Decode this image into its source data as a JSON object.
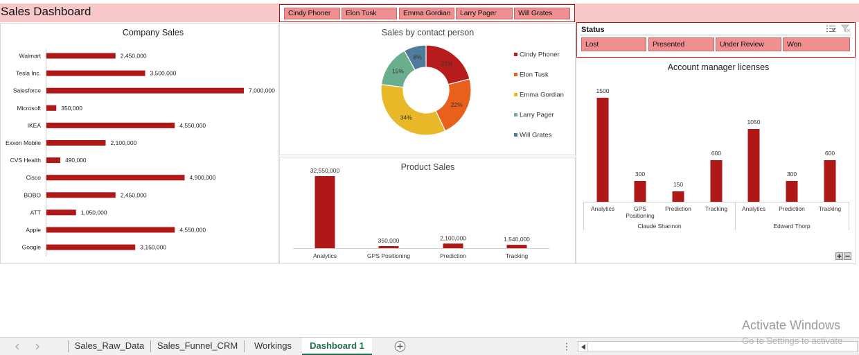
{
  "header": {
    "title": "Sales Dashboard"
  },
  "person_slicer": {
    "items": [
      "Cindy Phoner",
      "Elon Tusk",
      "Emma Gordian",
      "Larry Pager",
      "Will Grates"
    ]
  },
  "status_slicer": {
    "title": "Status",
    "items": [
      "Lost",
      "Presented",
      "Under Review",
      "Won"
    ]
  },
  "colors": {
    "bar": "#b01818",
    "header_bg": "#f8c8c8",
    "slicer_button": "#ef8f8f",
    "active_tab": "#1e7145"
  },
  "chart_data": [
    {
      "type": "bar",
      "orientation": "horizontal",
      "title": "Company Sales",
      "categories": [
        "Walmart",
        "Tesla Inc.",
        "Salesforce",
        "Microsoft",
        "IKEA",
        "Exxon Mobile",
        "CVS Health",
        "Cisco",
        "BOBO",
        "ATT",
        "Apple",
        "Google"
      ],
      "values": [
        2450000,
        3500000,
        7000000,
        350000,
        4550000,
        2100000,
        490000,
        4900000,
        2450000,
        1050000,
        4550000,
        3150000
      ],
      "labels": [
        "2,450,000",
        "3,500,000",
        "7,000,000",
        "350,000",
        "4,550,000",
        "2,100,000",
        "490,000",
        "4,900,000",
        "2,450,000",
        "1,050,000",
        "4,550,000",
        "3,150,000"
      ],
      "xlim": [
        0,
        7000000
      ],
      "grid": false,
      "legend": "none"
    },
    {
      "type": "pie",
      "donut": true,
      "title": "Sales by contact person",
      "labels": [
        "Cindy Phoner",
        "Elon Tusk",
        "Emma Gordian",
        "Larry Pager",
        "Will Grates"
      ],
      "values": [
        21,
        22,
        34,
        15,
        8
      ],
      "value_labels": [
        "21%",
        "22%",
        "34%",
        "15%",
        "8%"
      ],
      "colors": [
        "#b71c1c",
        "#e8601c",
        "#e8b828",
        "#6aae8e",
        "#4e7c9a"
      ],
      "legend": "right"
    },
    {
      "type": "bar",
      "title": "Product Sales",
      "categories": [
        "Analytics",
        "GPS Positioning",
        "Prediction",
        "Tracking"
      ],
      "values": [
        32550000,
        350000,
        2100000,
        1540000
      ],
      "labels": [
        "32,550,000",
        "350,000",
        "2,100,000",
        "1,540,000"
      ],
      "ylim": [
        0,
        32550000
      ],
      "grid": false,
      "legend": "none"
    },
    {
      "type": "bar",
      "title": "Account manager licenses",
      "groups": [
        {
          "name": "Claude Shannon",
          "categories": [
            "Analytics",
            "GPS Positioning",
            "Prediction",
            "Tracking"
          ],
          "values": [
            1500,
            300,
            150,
            600
          ]
        },
        {
          "name": "Edward Thorp",
          "categories": [
            "Analytics",
            "Prediction",
            "Tracking"
          ],
          "values": [
            1050,
            300,
            600
          ]
        }
      ],
      "ylim": [
        0,
        1600
      ],
      "grid": false,
      "legend": "none"
    }
  ],
  "sheet_tabs": {
    "items": [
      "Sales_Raw_Data",
      "Sales_Funnel_CRM",
      "Workings",
      "Dashboard 1"
    ],
    "active": "Dashboard 1"
  },
  "overlay": {
    "line1": "Activate Windows",
    "line2": "Go to Settings to activate"
  }
}
